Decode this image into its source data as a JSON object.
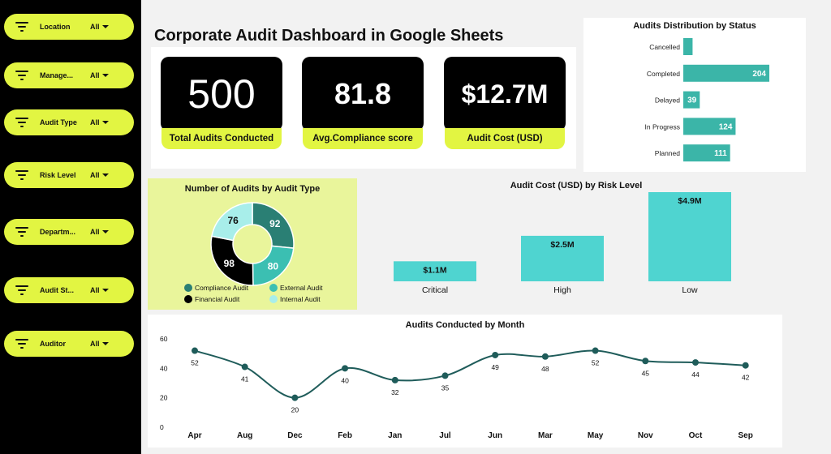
{
  "filters": [
    {
      "label": "Location",
      "value": "All"
    },
    {
      "label": "Manage...",
      "value": "All"
    },
    {
      "label": "Audit Type",
      "value": "All"
    },
    {
      "label": "Risk Level",
      "value": "All"
    },
    {
      "label": "Departm...",
      "value": "All"
    },
    {
      "label": "Audit St...",
      "value": "All"
    },
    {
      "label": "Auditor",
      "value": "All"
    }
  ],
  "header": {
    "title": "Corporate Audit Dashboard in Google Sheets"
  },
  "kpis": [
    {
      "value": "500",
      "label": "Total Audits Conducted"
    },
    {
      "value": "81.8",
      "label": "Avg.Compliance score"
    },
    {
      "value": "$12.7M",
      "label": "Audit Cost (USD)"
    }
  ],
  "colors": {
    "accent_lime": "#e2f542",
    "teal_bar": "#3bb5a8",
    "risk_bar": "#4fd4d0",
    "line": "#1f5c5a",
    "compliance": "#2a7f74",
    "external": "#3bbfb2",
    "financial": "#000000",
    "internal": "#a8eeea"
  },
  "charts": {
    "status_title": "Audits Distribution by Status",
    "type_title": "Number of Audits by Audit Type",
    "risk_title": "Audit Cost (USD) by Risk Level",
    "month_title": "Audits Conducted  by Month"
  },
  "chart_data": [
    {
      "type": "bar",
      "orientation": "horizontal",
      "title": "Audits Distribution by Status",
      "categories": [
        "Cancelled",
        "Completed",
        "Delayed",
        "In Progress",
        "Planned"
      ],
      "values": [
        22,
        204,
        39,
        124,
        111
      ],
      "data_labels": [
        "",
        "204",
        "39",
        "124",
        "111"
      ]
    },
    {
      "type": "pie",
      "variant": "donut",
      "title": "Number of Audits by Audit Type",
      "categories": [
        "Compliance Audit",
        "External Audit",
        "Financial Audit",
        "Internal Audit"
      ],
      "values": [
        92,
        80,
        98,
        76
      ],
      "legend": "bottom"
    },
    {
      "type": "bar",
      "title": "Audit Cost (USD) by Risk Level",
      "categories": [
        "Critical",
        "High",
        "Low"
      ],
      "values": [
        1.1,
        2.5,
        4.9
      ],
      "data_labels": [
        "$1.1M",
        "$2.5M",
        "$4.9M"
      ]
    },
    {
      "type": "line",
      "title": "Audits Conducted  by Month",
      "categories": [
        "Apr",
        "Aug",
        "Dec",
        "Feb",
        "Jan",
        "Jul",
        "Jun",
        "Mar",
        "May",
        "Nov",
        "Oct",
        "Sep"
      ],
      "values": [
        52,
        41,
        20,
        40,
        32,
        35,
        49,
        48,
        52,
        45,
        44,
        42
      ],
      "yticks": [
        "60",
        "40",
        "20",
        "0"
      ],
      "ylim": [
        0,
        60
      ]
    }
  ]
}
